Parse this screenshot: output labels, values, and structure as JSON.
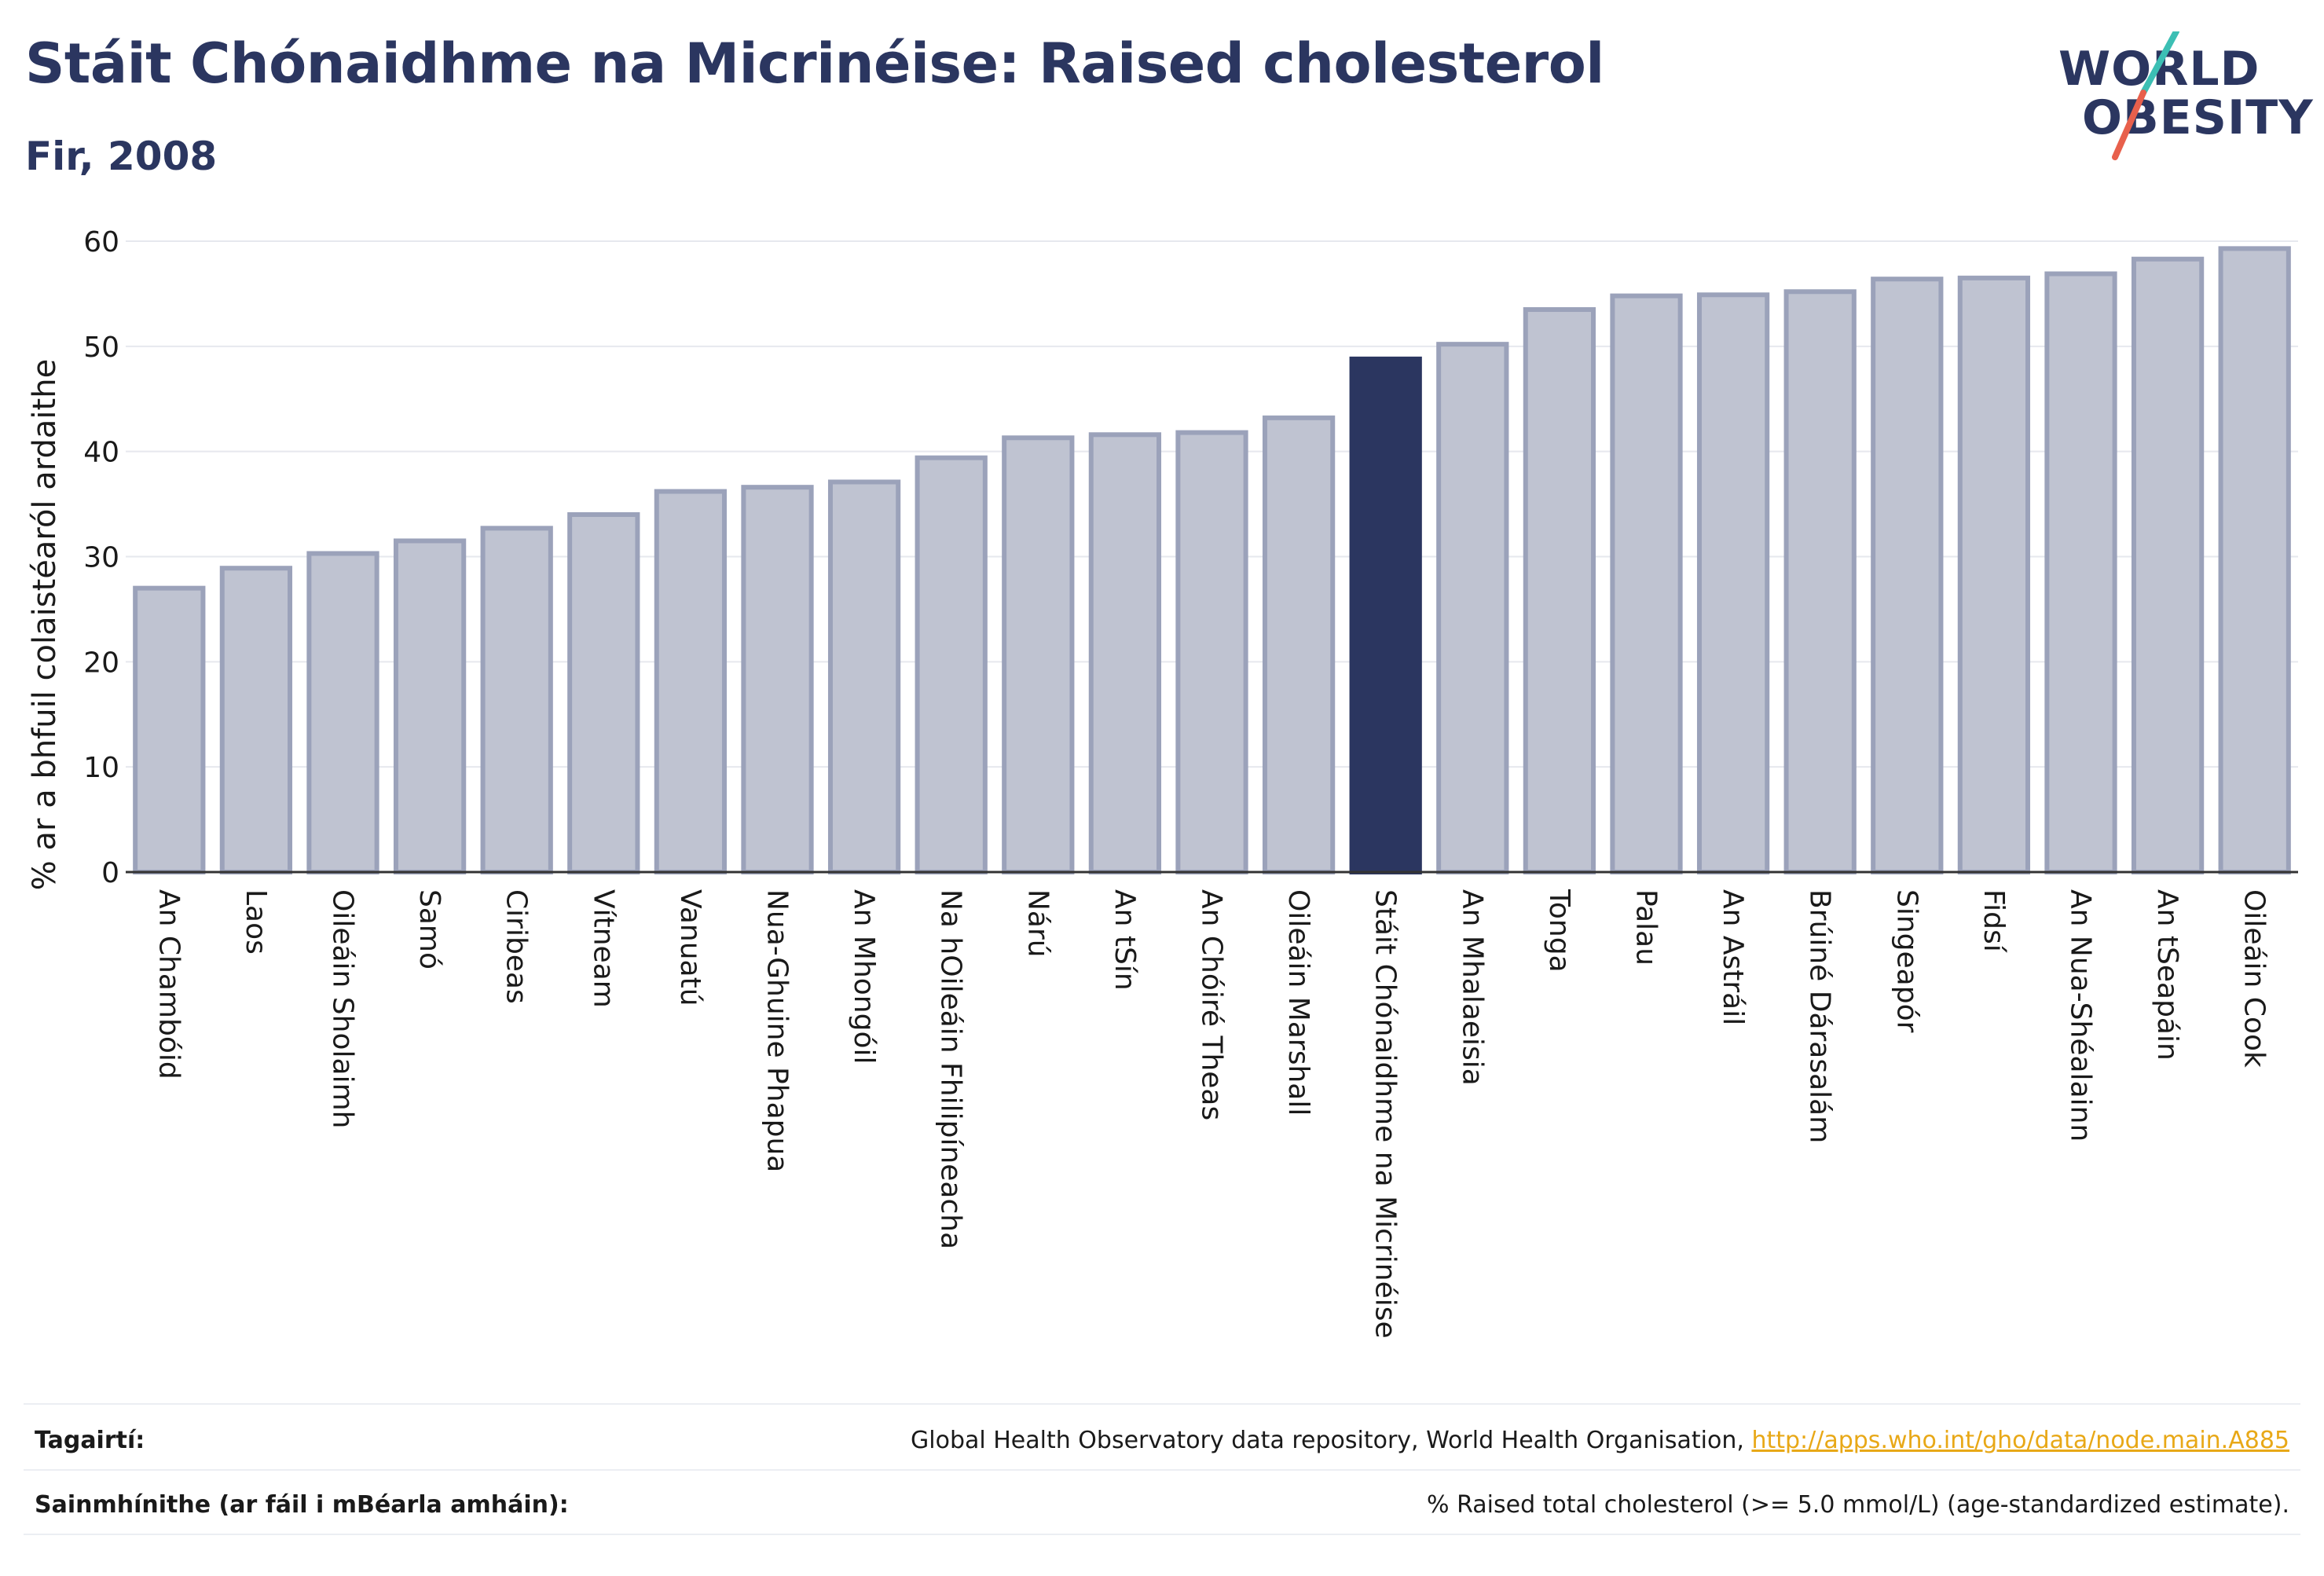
{
  "header": {
    "title": "Stáit Chónaidhme na Micrinéise: Raised cholesterol",
    "subtitle": "Fir, 2008"
  },
  "logo": {
    "line1": "WORLD",
    "line2": "OBESITY",
    "colors": {
      "text": "#2b3660",
      "slash_teal": "#3cbfb4",
      "slash_coral": "#e8604c"
    }
  },
  "footer": {
    "references_label": "Tagairtí:",
    "references_text": "Global Health Observatory data repository, World Health Organisation, ",
    "references_link": "http://apps.who.int/gho/data/node.main.A885",
    "definitions_label": "Sainmhínithe (ar fáil i mBéarla amháin):",
    "definitions_text": "% Raised total cholesterol (>= 5.0 mmol/L) (age-standardized estimate)."
  },
  "chart_data": {
    "type": "bar",
    "title": "Stáit Chónaidhme na Micrinéise: Raised cholesterol",
    "subtitle": "Fir, 2008",
    "xlabel": "",
    "ylabel": "% ar a bhfuil colaistéaról ardaithe",
    "ylim": [
      0,
      60
    ],
    "yticks": [
      0,
      10,
      20,
      30,
      40,
      50,
      60
    ],
    "grid": true,
    "highlight": "Stáit Chónaidhme na Micrinéise",
    "colors": {
      "bar": "#bfc3d1",
      "bar_border": "#9ba2ba",
      "highlight": "#2b3660"
    },
    "categories": [
      "An Chambóid",
      "Laos",
      "Oileáin Sholaimh",
      "Samó",
      "Ciribeas",
      "Vítneam",
      "Vanuatú",
      "Nua-Ghuine Phapua",
      "An Mhongóil",
      "Na hOileáin Fhilipíneacha",
      "Nárú",
      "An tSín",
      "An Chóiré Theas",
      "Oileáin Marshall",
      "Stáit Chónaidhme na Micrinéise",
      "An Mhalaeisia",
      "Tonga",
      "Palau",
      "An Astráil",
      "Brúiné Dárasalám",
      "Singeapór",
      "Fidsí",
      "An Nua-Shéalainn",
      "An tSeapáin",
      "Oileáin Cook"
    ],
    "values": [
      27.0,
      28.9,
      30.3,
      31.5,
      32.7,
      34.0,
      36.2,
      36.6,
      37.1,
      39.4,
      41.3,
      41.6,
      41.8,
      43.2,
      48.8,
      50.2,
      53.5,
      54.8,
      54.9,
      55.2,
      56.4,
      56.5,
      56.9,
      58.3,
      59.3
    ]
  }
}
